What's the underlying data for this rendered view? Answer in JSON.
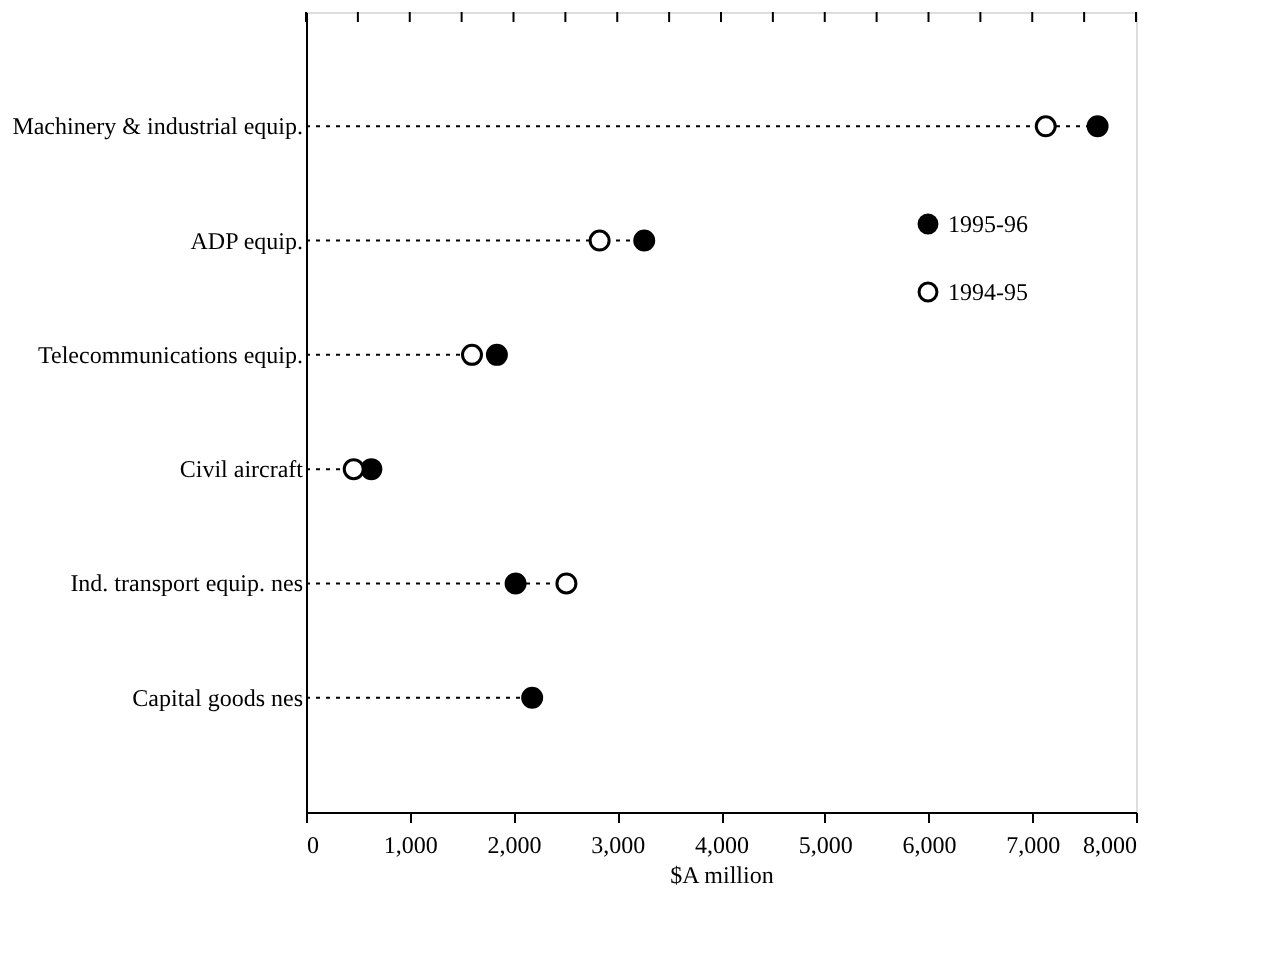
{
  "chart_data": {
    "type": "lollipop",
    "orientation": "horizontal",
    "xlabel": "$A million",
    "categories": [
      "Machinery & industrial equip.",
      "ADP equip.",
      "Telecommunications equip.",
      "Civil aircraft",
      "Ind. transport equip. nes",
      "Capital goods nes"
    ],
    "series": [
      {
        "name": "1995-96",
        "color": "#000000",
        "marker": "circle",
        "values": [
          7630,
          3260,
          1840,
          630,
          2020,
          2180
        ]
      },
      {
        "name": "1994-95",
        "color": "#ffffff",
        "marker": "circle",
        "values": [
          7130,
          2830,
          1600,
          460,
          2510,
          null
        ]
      }
    ],
    "xlim": [
      0,
      8000
    ],
    "xticks": [
      0,
      {
        "value": 500,
        "label": null
      },
      {
        "value": 1000,
        "label": "1,000"
      },
      {
        "value": 1500,
        "label": null
      },
      {
        "value": 2000,
        "label": "2,000"
      },
      {
        "value": 2500,
        "label": null
      },
      {
        "value": 3000,
        "label": "3,000"
      },
      {
        "value": 3500,
        "label": null
      },
      {
        "value": 4000,
        "label": "4,000"
      },
      {
        "value": 4500,
        "label": null
      },
      {
        "value": 5000,
        "label": "5,000"
      },
      {
        "value": 5500,
        "label": null
      },
      {
        "value": 6000,
        "label": "6,000"
      },
      {
        "value": 6500,
        "label": null
      },
      {
        "value": 7000,
        "label": "7,000"
      },
      {
        "value": 7500,
        "label": null
      },
      {
        "value": 8000,
        "label": "8,000"
      }
    ],
    "line_style": "dotted",
    "grid": false,
    "legend": "right"
  }
}
